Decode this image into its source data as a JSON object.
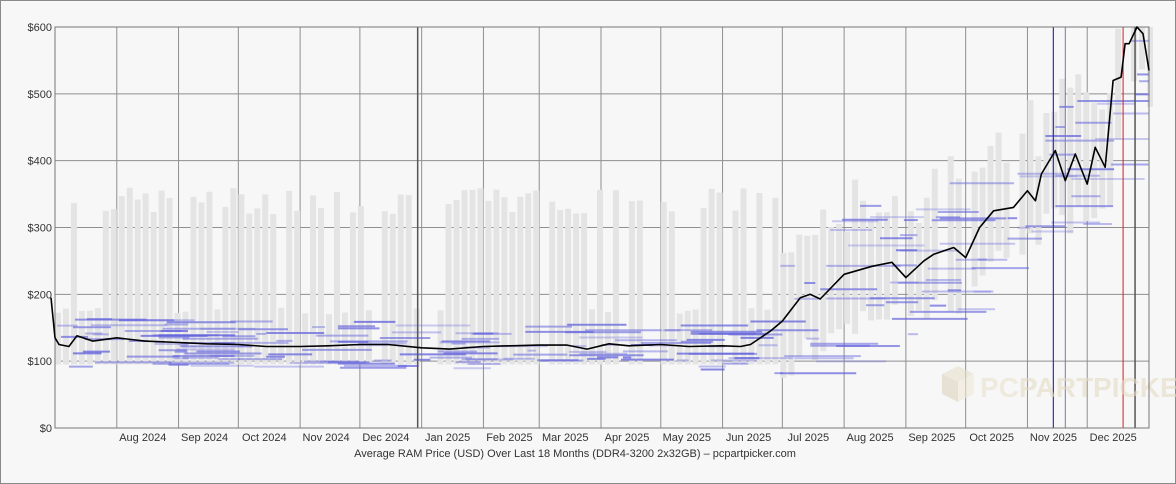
{
  "chart_data": {
    "type": "line",
    "title": "Average RAM Price (USD) Over Last 18 Months (DDR4-3200 2x32GB) – pcpartpicker.com",
    "xlabel": "",
    "ylabel": "",
    "ylim": [
      0,
      600
    ],
    "yticks": [
      0,
      100,
      200,
      300,
      400,
      500,
      600
    ],
    "ytick_labels": [
      "$0",
      "$100",
      "$200",
      "$300",
      "$400",
      "$500",
      "$600"
    ],
    "xlim": [
      "2024-07-01",
      "2026-01-01"
    ],
    "xticks": [
      "2024-08-01",
      "2024-09-01",
      "2024-10-01",
      "2024-11-01",
      "2024-12-01",
      "2025-01-01",
      "2025-02-01",
      "2025-03-01",
      "2025-04-01",
      "2025-05-01",
      "2025-06-01",
      "2025-07-01",
      "2025-08-01",
      "2025-09-01",
      "2025-10-01",
      "2025-11-01",
      "2025-12-01"
    ],
    "xtick_labels": [
      "Aug 2024",
      "Sep 2024",
      "Oct 2024",
      "Nov 2024",
      "Dec 2024",
      "Jan 2025",
      "Feb 2025",
      "Mar 2025",
      "Apr 2025",
      "May 2025",
      "Jun 2025",
      "Jul 2025",
      "Aug 2025",
      "Sep 2025",
      "Oct 2025",
      "Nov 2025",
      "Dec 2025"
    ],
    "grid": true,
    "legend": "none",
    "watermark": "PCPARTPICKER",
    "colors": {
      "average_line": "#000000",
      "range_fill": "#e4e4e4",
      "retailer_lines": "#6666dd",
      "grid": "#8f8f8f",
      "marker_dark": "#555555",
      "marker_blue": "#3333aa",
      "marker_red": "#cc2222"
    },
    "series": [
      {
        "kind": "average",
        "x": [
          "2024-06-29",
          "2024-07-01",
          "2024-07-03",
          "2024-07-08",
          "2024-07-12",
          "2024-07-20",
          "2024-08-01",
          "2024-08-15",
          "2024-09-01",
          "2024-09-15",
          "2024-10-01",
          "2024-10-15",
          "2024-11-01",
          "2024-11-15",
          "2024-12-01",
          "2024-12-15",
          "2025-01-01",
          "2025-01-15",
          "2025-02-01",
          "2025-02-15",
          "2025-03-01",
          "2025-03-15",
          "2025-03-25",
          "2025-04-05",
          "2025-04-15",
          "2025-05-01",
          "2025-05-15",
          "2025-06-01",
          "2025-06-10",
          "2025-06-15",
          "2025-06-25",
          "2025-07-01",
          "2025-07-10",
          "2025-07-15",
          "2025-07-20",
          "2025-08-01",
          "2025-08-15",
          "2025-08-25",
          "2025-09-01",
          "2025-09-10",
          "2025-09-15",
          "2025-09-25",
          "2025-10-01",
          "2025-10-08",
          "2025-10-15",
          "2025-10-25",
          "2025-11-01",
          "2025-11-05",
          "2025-11-08",
          "2025-11-15",
          "2025-11-20",
          "2025-11-25",
          "2025-12-01",
          "2025-12-05",
          "2025-12-10",
          "2025-12-14",
          "2025-12-18",
          "2025-12-20",
          "2025-12-22",
          "2025-12-26",
          "2025-12-29",
          "2026-01-01"
        ],
        "y": [
          195,
          135,
          125,
          122,
          138,
          130,
          135,
          130,
          128,
          126,
          125,
          122,
          122,
          123,
          125,
          125,
          120,
          118,
          122,
          123,
          124,
          124,
          118,
          126,
          123,
          125,
          122,
          123,
          122,
          125,
          145,
          160,
          195,
          200,
          193,
          230,
          242,
          248,
          225,
          250,
          260,
          270,
          255,
          300,
          325,
          330,
          355,
          340,
          380,
          415,
          370,
          410,
          365,
          420,
          390,
          520,
          525,
          575,
          575,
          600,
          590,
          535
        ]
      }
    ]
  }
}
